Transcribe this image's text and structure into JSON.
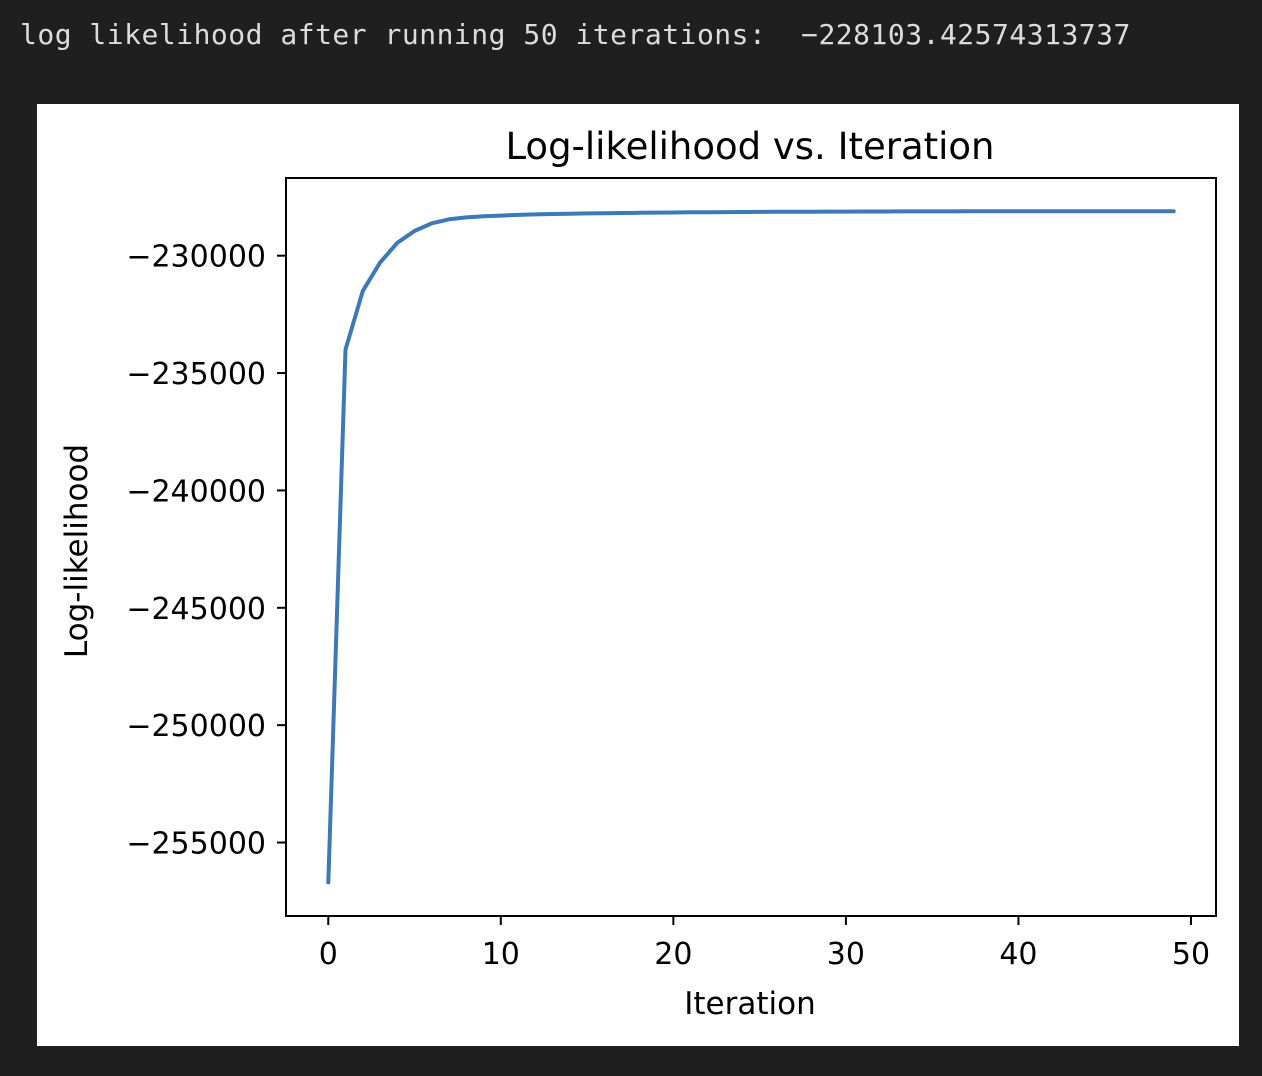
{
  "console": {
    "output_text": "log likelihood after running 50 iterations:  −228103.42574313737"
  },
  "colors": {
    "background": "#1f1f1f",
    "plot_background": "#ffffff",
    "line": "#3d79b5"
  },
  "chart_data": {
    "type": "line",
    "title": "Log-likelihood vs. Iteration",
    "xlabel": "Iteration",
    "ylabel": "Log-likelihood",
    "xlim": [
      -2.45,
      51.45
    ],
    "ylim": [
      -258130,
      -226690
    ],
    "xticks": [
      0,
      10,
      20,
      30,
      40,
      50
    ],
    "xtick_labels": [
      "0",
      "10",
      "20",
      "30",
      "40",
      "50"
    ],
    "yticks": [
      -230000,
      -235000,
      -240000,
      -245000,
      -250000,
      -255000
    ],
    "ytick_labels": [
      "−230000",
      "−235000",
      "−240000",
      "−245000",
      "−250000",
      "−255000"
    ],
    "grid": false,
    "legend": "none",
    "series": [
      {
        "x": [
          0,
          1,
          2,
          3,
          4,
          5,
          6,
          7,
          8,
          9,
          10,
          11,
          12,
          13,
          14,
          15,
          16,
          17,
          18,
          19,
          20,
          21,
          22,
          23,
          24,
          25,
          26,
          27,
          28,
          29,
          30,
          31,
          32,
          33,
          34,
          35,
          36,
          37,
          38,
          39,
          40,
          41,
          42,
          43,
          44,
          45,
          46,
          47,
          48,
          49
        ],
        "values": [
          -256700,
          -234000,
          -231500,
          -230300,
          -229450,
          -228950,
          -228620,
          -228450,
          -228370,
          -228320,
          -228290,
          -228260,
          -228240,
          -228225,
          -228210,
          -228200,
          -228190,
          -228180,
          -228172,
          -228165,
          -228158,
          -228152,
          -228147,
          -228142,
          -228138,
          -228134,
          -228131,
          -228128,
          -228125,
          -228122,
          -228120,
          -228118,
          -228116,
          -228114,
          -228113,
          -228112,
          -228111,
          -228110,
          -228109,
          -228108,
          -228107,
          -228107,
          -228106,
          -228106,
          -228105,
          -228105,
          -228104,
          -228104,
          -228104,
          -228103.43
        ]
      }
    ]
  }
}
